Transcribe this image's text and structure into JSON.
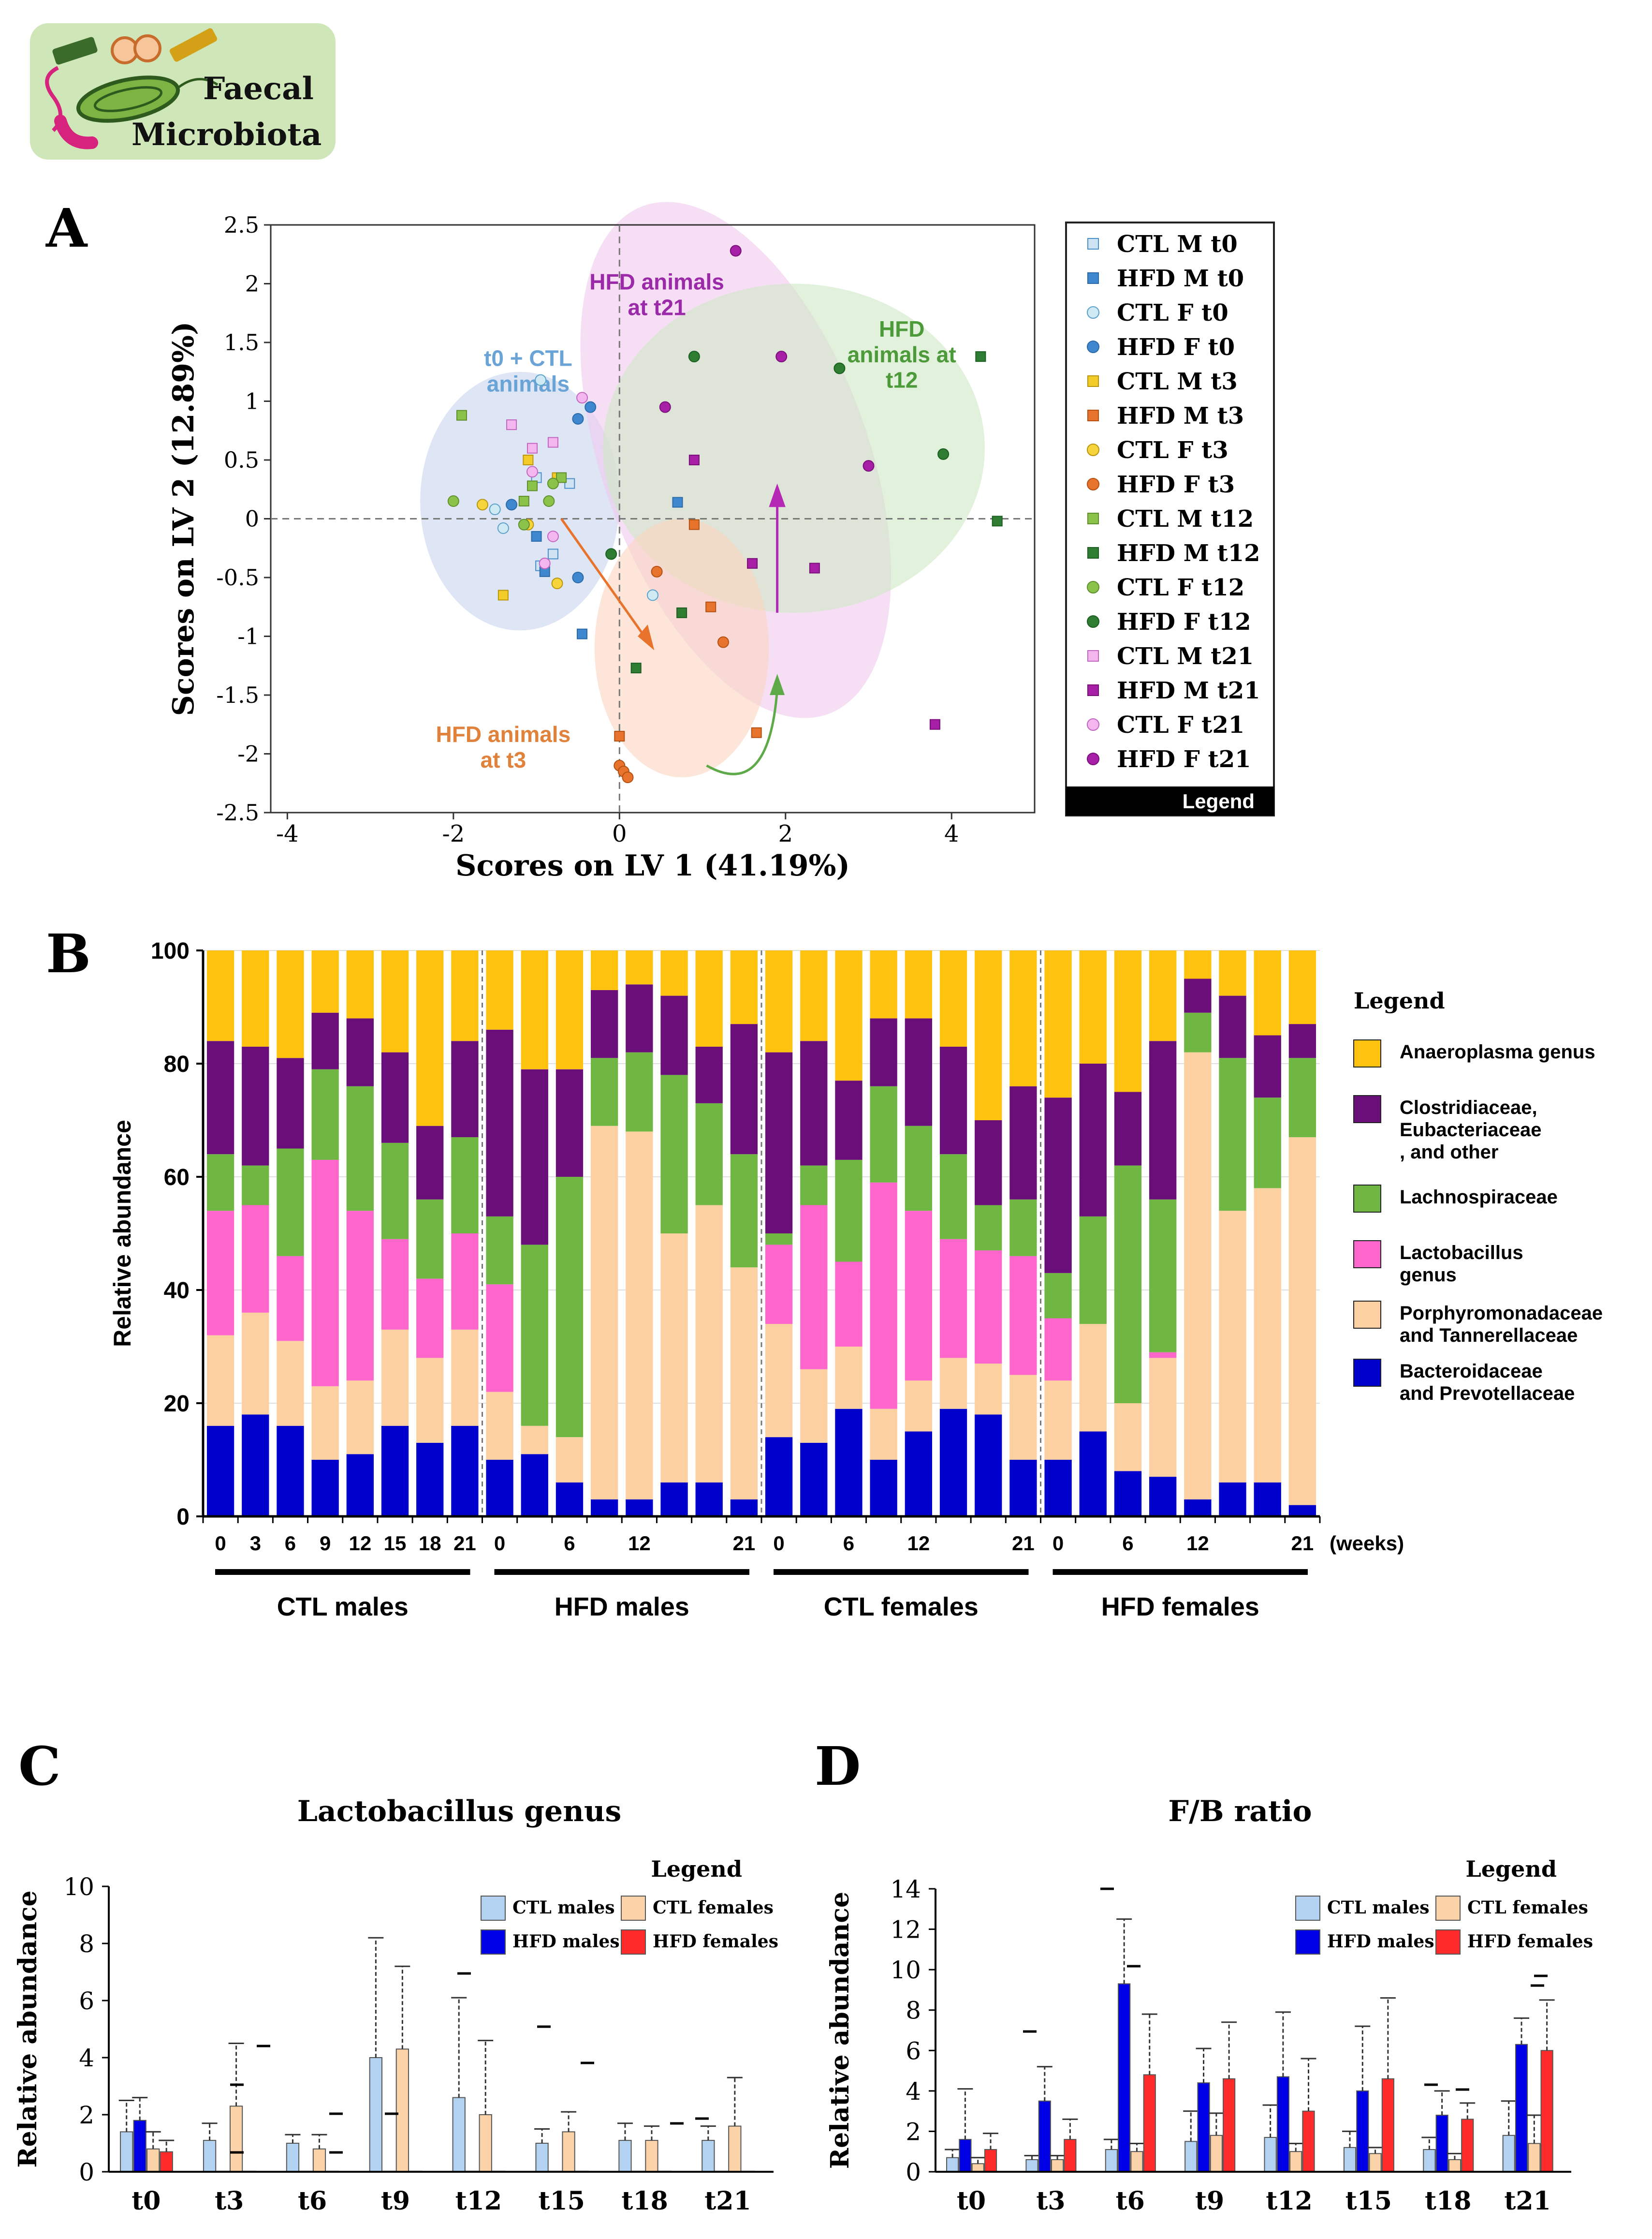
{
  "header": {
    "badge_line1": "Faecal",
    "badge_line2": "Microbiota",
    "badge_color": "#cfe6b8"
  },
  "chart_data": [
    {
      "panel": "A",
      "type": "scatter",
      "xlabel": "Scores on LV 1 (41.19%)",
      "ylabel": "Scores on LV 2 (12.89%)",
      "xlim": [
        -4.2,
        5.0
      ],
      "ylim": [
        -2.5,
        2.5
      ],
      "xticks": [
        -4,
        -2,
        0,
        2,
        4
      ],
      "yticks": [
        2.5,
        2,
        1.5,
        1,
        0.5,
        0,
        -0.5,
        -1,
        -1.5,
        -2,
        -2.5
      ],
      "groups": [
        {
          "label": "t0 + CTL\nanimals",
          "color": "#c8d4ec",
          "text_color": "#6aa3d6",
          "cx": -1.2,
          "cy": 0.15,
          "rx": 1.2,
          "ry": 1.1,
          "angle": 0,
          "lx": -1.1,
          "ly": 1.3
        },
        {
          "label": "HFD animals\nat t21",
          "color": "#f0c8ee",
          "text_color": "#9b2aa8",
          "cx": 1.4,
          "cy": 0.5,
          "rx": 1.6,
          "ry": 2.3,
          "angle": -20,
          "lx": 0.45,
          "ly": 1.95
        },
        {
          "label": "HFD\nanimals at\nt12",
          "color": "#cfe8c4",
          "text_color": "#4c9a3a",
          "cx": 2.1,
          "cy": 0.6,
          "rx": 2.3,
          "ry": 1.4,
          "angle": 0,
          "lx": 3.4,
          "ly": 1.55
        },
        {
          "label": "HFD animals\nat t3",
          "color": "#fbd5bf",
          "text_color": "#e0823c",
          "cx": 0.75,
          "cy": -1.1,
          "rx": 1.05,
          "ry": 1.1,
          "angle": 0,
          "lx": -1.4,
          "ly": -1.9
        }
      ],
      "series": [
        {
          "name": "CTL M t0",
          "marker": "square",
          "color": "#cfe3f3",
          "edge": "#4a8fc9",
          "points": [
            [
              -1.0,
              0.35
            ],
            [
              -0.95,
              -0.4
            ],
            [
              -0.8,
              -0.3
            ],
            [
              -0.6,
              0.3
            ]
          ]
        },
        {
          "name": "HFD M t0",
          "marker": "square",
          "color": "#3f88cf",
          "edge": "#2a6aa8",
          "points": [
            [
              -1.0,
              -0.15
            ],
            [
              -0.9,
              -0.45
            ],
            [
              -0.45,
              -0.98
            ],
            [
              0.7,
              0.14
            ]
          ]
        },
        {
          "name": "CTL F t0",
          "marker": "circle",
          "color": "#cfe9f5",
          "edge": "#5aa0c8",
          "points": [
            [
              -1.5,
              0.08
            ],
            [
              -1.4,
              -0.08
            ],
            [
              -0.95,
              1.18
            ],
            [
              0.4,
              -0.65
            ]
          ]
        },
        {
          "name": "HFD F t0",
          "marker": "circle",
          "color": "#3f88cf",
          "edge": "#2a6aa8",
          "points": [
            [
              -0.5,
              0.85
            ],
            [
              -0.35,
              0.95
            ],
            [
              -0.5,
              -0.5
            ],
            [
              -1.3,
              0.12
            ]
          ]
        },
        {
          "name": "CTL M t3",
          "marker": "square",
          "color": "#f4cc2a",
          "edge": "#b8950c",
          "points": [
            [
              -1.1,
              0.5
            ],
            [
              -1.4,
              -0.65
            ],
            [
              -0.75,
              0.35
            ]
          ]
        },
        {
          "name": "HFD M t3",
          "marker": "square",
          "color": "#e8732c",
          "edge": "#b45012",
          "points": [
            [
              0.0,
              -1.85
            ],
            [
              0.9,
              -0.05
            ],
            [
              1.65,
              -1.82
            ],
            [
              1.1,
              -0.75
            ]
          ]
        },
        {
          "name": "CTL F t3",
          "marker": "circle",
          "color": "#f6d43c",
          "edge": "#b8950c",
          "points": [
            [
              -1.65,
              0.12
            ],
            [
              -1.1,
              -0.05
            ],
            [
              -0.75,
              -0.55
            ]
          ]
        },
        {
          "name": "HFD F t3",
          "marker": "circle",
          "color": "#e8732c",
          "edge": "#b45012",
          "points": [
            [
              0.0,
              -2.1
            ],
            [
              0.05,
              -2.15
            ],
            [
              0.1,
              -2.2
            ],
            [
              0.45,
              -0.45
            ],
            [
              1.25,
              -1.05
            ]
          ]
        },
        {
          "name": "CTL M t12",
          "marker": "square",
          "color": "#8bc34a",
          "edge": "#5e8f2c",
          "points": [
            [
              -1.9,
              0.88
            ],
            [
              -1.05,
              0.28
            ],
            [
              -0.7,
              0.35
            ],
            [
              -1.15,
              0.15
            ]
          ]
        },
        {
          "name": "HFD M t12",
          "marker": "square",
          "color": "#2e7d32",
          "edge": "#1b5e20",
          "points": [
            [
              0.75,
              -0.8
            ],
            [
              0.2,
              -1.27
            ],
            [
              4.35,
              1.38
            ],
            [
              4.55,
              -0.02
            ]
          ]
        },
        {
          "name": "CTL F t12",
          "marker": "circle",
          "color": "#8bc34a",
          "edge": "#5e8f2c",
          "points": [
            [
              -2.0,
              0.15
            ],
            [
              -0.85,
              0.15
            ],
            [
              -1.15,
              -0.05
            ],
            [
              -0.8,
              0.3
            ]
          ]
        },
        {
          "name": "HFD F t12",
          "marker": "circle",
          "color": "#2e7d32",
          "edge": "#1b5e20",
          "points": [
            [
              0.9,
              1.38
            ],
            [
              2.65,
              1.28
            ],
            [
              3.9,
              0.55
            ],
            [
              -0.1,
              -0.3
            ]
          ]
        },
        {
          "name": "CTL M t21",
          "marker": "square",
          "color": "#f3b6ef",
          "edge": "#c266c0",
          "points": [
            [
              -1.3,
              0.8
            ],
            [
              -0.8,
              0.65
            ],
            [
              -1.05,
              0.6
            ]
          ]
        },
        {
          "name": "HFD M t21",
          "marker": "square",
          "color": "#a61fa6",
          "edge": "#7a0f7a",
          "points": [
            [
              0.9,
              0.5
            ],
            [
              1.6,
              -0.38
            ],
            [
              2.35,
              -0.42
            ],
            [
              3.8,
              -1.75
            ]
          ]
        },
        {
          "name": "CTL F t21",
          "marker": "circle",
          "color": "#f3b6ef",
          "edge": "#c266c0",
          "points": [
            [
              -0.45,
              1.03
            ],
            [
              -0.9,
              -0.38
            ],
            [
              -1.05,
              0.4
            ],
            [
              -0.8,
              -0.15
            ]
          ]
        },
        {
          "name": "HFD F t21",
          "marker": "circle",
          "color": "#a61fa6",
          "edge": "#7a0f7a",
          "points": [
            [
              1.4,
              2.28
            ],
            [
              0.55,
              0.95
            ],
            [
              1.95,
              1.38
            ],
            [
              3.0,
              0.45
            ]
          ]
        }
      ],
      "legend_title": "Legend"
    },
    {
      "panel": "B",
      "type": "stacked_bar",
      "ylabel": "Relative abundance",
      "ylim": [
        0,
        100
      ],
      "yticks": [
        0,
        20,
        40,
        60,
        80,
        100
      ],
      "unit_label": "(weeks)",
      "groups": [
        "CTL males",
        "HFD males",
        "CTL females",
        "HFD females"
      ],
      "group_tick_labels": [
        [
          "0",
          "3",
          "6",
          "9",
          "12",
          "15",
          "18",
          "21"
        ],
        [
          "0",
          "",
          "6",
          "",
          "12",
          "",
          "",
          "21"
        ],
        [
          "0",
          "",
          "6",
          "",
          "12",
          "",
          "",
          "21"
        ],
        [
          "0",
          "",
          "6",
          "",
          "12",
          "",
          "",
          "21"
        ]
      ],
      "legend_title": "Legend",
      "series_order": [
        "Bacteroidaceae and Prevotellaceae",
        "Porphyromonadaceae and Tannerellaceae",
        "Lactobacillus genus",
        "Lachnospiraceae",
        "Clostridiaceae, Eubacteriaceae , and other",
        "Anaeroplasma genus"
      ],
      "legend_items": [
        {
          "label": "Anaeroplasma genus",
          "color": "#ffc20e"
        },
        {
          "label": "Clostridiaceae,\nEubacteriaceae\n, and other",
          "color": "#6a0f7a"
        },
        {
          "label": "Lachnospiraceae",
          "color": "#6fb642"
        },
        {
          "label": "Lactobacillus\ngenus",
          "color": "#ff66cc"
        },
        {
          "label": "Porphyromonadaceae\nand Tannerellaceae",
          "color": "#fdd0a2"
        },
        {
          "label": "Bacteroidaceae\nand Prevotellaceae",
          "color": "#0000cc"
        }
      ],
      "colors": [
        "#0000cc",
        "#fdd0a2",
        "#ff66cc",
        "#6fb642",
        "#6a0f7a",
        "#ffc20e"
      ],
      "bars": [
        [
          16,
          16,
          22,
          10,
          20,
          16
        ],
        [
          18,
          18,
          19,
          7,
          21,
          17
        ],
        [
          16,
          15,
          15,
          19,
          16,
          19
        ],
        [
          10,
          13,
          40,
          16,
          10,
          11
        ],
        [
          11,
          13,
          30,
          22,
          12,
          12
        ],
        [
          16,
          17,
          16,
          17,
          16,
          18
        ],
        [
          13,
          15,
          14,
          14,
          13,
          31
        ],
        [
          16,
          17,
          17,
          17,
          17,
          16
        ],
        [
          10,
          12,
          19,
          12,
          33,
          14
        ],
        [
          11,
          5,
          0,
          32,
          31,
          21
        ],
        [
          6,
          8,
          0,
          46,
          19,
          21
        ],
        [
          3,
          66,
          0,
          12,
          12,
          7
        ],
        [
          3,
          65,
          0,
          14,
          12,
          6
        ],
        [
          6,
          44,
          0,
          28,
          14,
          8
        ],
        [
          6,
          49,
          0,
          18,
          10,
          17
        ],
        [
          3,
          41,
          0,
          20,
          23,
          13
        ],
        [
          14,
          20,
          14,
          2,
          32,
          18
        ],
        [
          13,
          13,
          29,
          7,
          22,
          16
        ],
        [
          19,
          11,
          15,
          18,
          14,
          23
        ],
        [
          10,
          9,
          40,
          17,
          12,
          12
        ],
        [
          15,
          9,
          30,
          15,
          19,
          12
        ],
        [
          19,
          9,
          21,
          15,
          19,
          17
        ],
        [
          18,
          9,
          20,
          8,
          15,
          30
        ],
        [
          10,
          15,
          21,
          10,
          20,
          24
        ],
        [
          10,
          14,
          11,
          8,
          31,
          26
        ],
        [
          15,
          19,
          0,
          19,
          27,
          20
        ],
        [
          8,
          12,
          0,
          42,
          13,
          25
        ],
        [
          7,
          21,
          1,
          27,
          28,
          16
        ],
        [
          3,
          79,
          0,
          7,
          6,
          5
        ],
        [
          6,
          48,
          0,
          27,
          11,
          8
        ],
        [
          6,
          52,
          0,
          16,
          11,
          15
        ],
        [
          2,
          65,
          0,
          14,
          6,
          13
        ]
      ]
    },
    {
      "panel": "C",
      "type": "bar",
      "title": "Lactobacillus genus",
      "ylabel": "Relative abundance",
      "ylim": [
        0,
        10
      ],
      "yticks": [
        0,
        2,
        4,
        6,
        8,
        10
      ],
      "categories": [
        "t0",
        "t3",
        "t6",
        "t9",
        "t12",
        "t15",
        "t18",
        "t21"
      ],
      "legend_title": "Legend",
      "series": [
        {
          "name": "CTL males",
          "color": "#b3d1f0",
          "values": [
            1.4,
            1.1,
            1.0,
            4.0,
            2.6,
            1.0,
            1.1,
            1.1
          ],
          "err": [
            1.1,
            0.6,
            0.3,
            4.2,
            3.5,
            0.5,
            0.6,
            0.5
          ]
        },
        {
          "name": "HFD males",
          "color": "#0000e6",
          "values": [
            1.8,
            0.02,
            0.02,
            0.02,
            0.02,
            0.02,
            0.02,
            0.02
          ],
          "err": [
            0.8,
            0,
            0,
            0,
            0,
            0,
            0,
            0
          ]
        },
        {
          "name": "CTL females",
          "color": "#fcd2a8",
          "values": [
            0.8,
            2.3,
            0.8,
            4.3,
            2.0,
            1.4,
            1.1,
            1.6
          ],
          "err": [
            0.6,
            2.2,
            0.5,
            2.9,
            2.6,
            0.7,
            0.5,
            1.7
          ]
        },
        {
          "name": "HFD females",
          "color": "#ff2a2a",
          "values": [
            0.7,
            0.02,
            0.02,
            0.02,
            0.02,
            0.02,
            0.02,
            0.02
          ],
          "err": [
            0.4,
            0,
            0,
            0,
            0,
            0,
            0,
            0
          ]
        }
      ]
    },
    {
      "panel": "D",
      "type": "bar",
      "title": "F/B ratio",
      "ylabel": "Relative abundance",
      "ylim": [
        0,
        14
      ],
      "yticks": [
        0,
        2,
        4,
        6,
        8,
        10,
        12,
        14
      ],
      "categories": [
        "t0",
        "t3",
        "t6",
        "t9",
        "t12",
        "t15",
        "t18",
        "t21"
      ],
      "legend_title": "Legend",
      "series": [
        {
          "name": "CTL males",
          "color": "#b3d1f0",
          "values": [
            0.7,
            0.6,
            1.1,
            1.5,
            1.7,
            1.2,
            1.1,
            1.8
          ],
          "err": [
            0.4,
            0.2,
            0.5,
            1.5,
            1.6,
            0.8,
            0.6,
            1.7
          ]
        },
        {
          "name": "HFD males",
          "color": "#0000e6",
          "values": [
            1.6,
            3.5,
            9.3,
            4.4,
            4.7,
            4.0,
            2.8,
            6.3
          ],
          "err": [
            2.5,
            1.7,
            3.2,
            1.7,
            3.2,
            3.2,
            1.2,
            1.3
          ]
        },
        {
          "name": "CTL females",
          "color": "#fcd2a8",
          "values": [
            0.4,
            0.6,
            1.0,
            1.8,
            1.0,
            0.9,
            0.6,
            1.4
          ],
          "err": [
            0.3,
            0.2,
            0.4,
            1.1,
            0.4,
            0.3,
            0.3,
            1.4
          ]
        },
        {
          "name": "HFD females",
          "color": "#ff2a2a",
          "values": [
            1.1,
            1.6,
            4.8,
            4.6,
            3.0,
            4.6,
            2.6,
            6.0
          ],
          "err": [
            0.8,
            1.0,
            3.0,
            2.8,
            2.6,
            4.0,
            0.8,
            2.5
          ]
        }
      ]
    }
  ]
}
